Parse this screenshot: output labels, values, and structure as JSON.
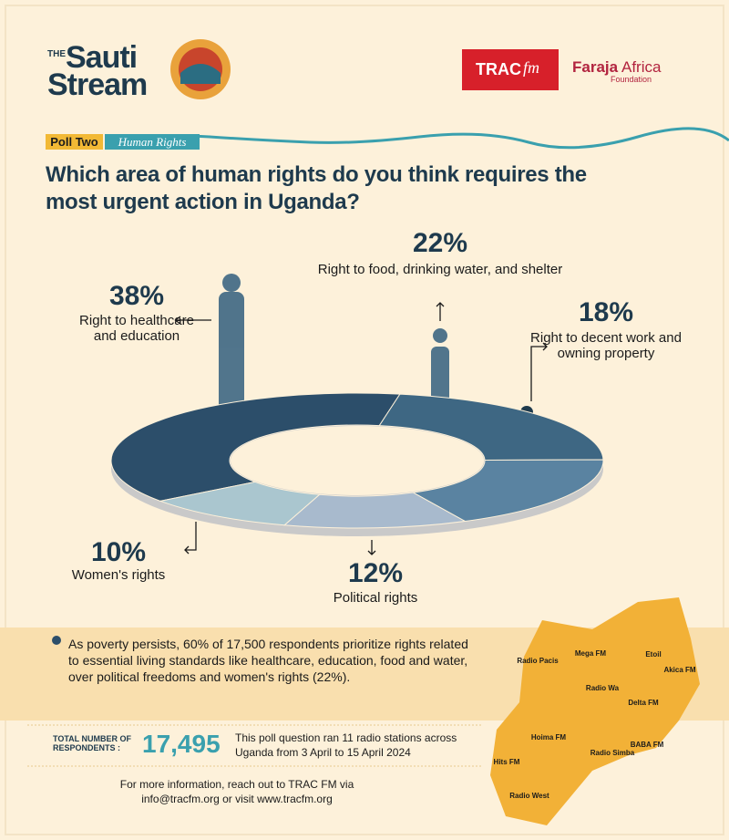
{
  "header": {
    "logo_the": "THE",
    "logo_sauti": "Sauti",
    "logo_stream": "Stream",
    "trac": "TRAC",
    "fm": "fm",
    "faraja": "Faraja",
    "africa": "Africa",
    "foundation": "Foundation"
  },
  "poll": {
    "number": "Poll Two",
    "topic": "Human Rights"
  },
  "chart_data": {
    "type": "donut",
    "title": "Which area of human rights do you think requires the most urgent action in Uganda?",
    "categories": [
      "Right to healthcare and education",
      "Right to food, drinking water, and shelter",
      "Right to decent work and owning property",
      "Political rights",
      "Women's rights"
    ],
    "values": [
      38,
      22,
      18,
      12,
      10
    ],
    "value_labels": [
      "38%",
      "22%",
      "18%",
      "12%",
      "10%"
    ],
    "colors": [
      "#2c4e6a",
      "#3e6783",
      "#5a83a1",
      "#a8bacd",
      "#aac6cf"
    ]
  },
  "note": "As poverty persists, 60% of 17,500 respondents prioritize rights related to essential living standards like healthcare, education, food and water, over political freedoms and women's rights (22%).",
  "respondents": {
    "label": "TOTAL NUMBER OF RESPONDENTS :",
    "count": "17,495",
    "detail": "This poll question ran 11 radio stations across Uganda from 3 April to 15 April 2024"
  },
  "footer": "For more information, reach out to TRAC FM via info@tracfm.org or visit www.tracfm.org",
  "map": {
    "stations": [
      "Radio Pacis",
      "Mega FM",
      "Etoil",
      "Akica FM",
      "Radio Wa",
      "Delta FM",
      "Hoima FM",
      "Radio Simba",
      "BABA FM",
      "Hits FM",
      "Radio West"
    ]
  }
}
